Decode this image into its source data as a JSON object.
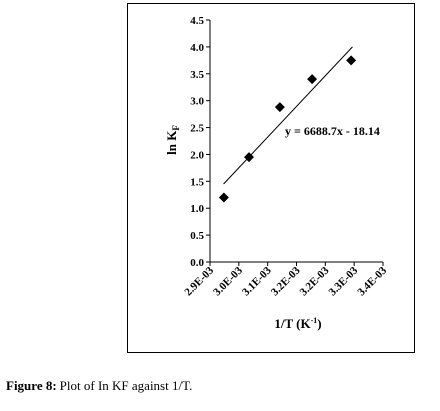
{
  "chart_data": {
    "type": "scatter",
    "x_label": [
      "1/T (K",
      "-1",
      ")"
    ],
    "y_label": [
      "ln K",
      "F"
    ],
    "x": [
      0.002941,
      0.003015,
      0.003106,
      0.003201,
      0.003316
    ],
    "values": [
      1.2,
      1.95,
      2.88,
      3.4,
      3.75
    ],
    "color": "#000000",
    "trendline": {
      "x": [
        0.00294,
        0.00332
      ],
      "y": [
        1.45,
        4.0
      ],
      "label": "y = 6688.7x - 18.14"
    },
    "xlim": [
      0.0029,
      0.00341
    ],
    "xticks": [
      {
        "value": 0.0029,
        "label": "2.9E-03"
      },
      {
        "value": 0.002985,
        "label": "3.0E-03"
      },
      {
        "value": 0.00307,
        "label": "3.1E-03"
      },
      {
        "value": 0.003155,
        "label": "3.2E-03"
      },
      {
        "value": 0.00324,
        "label": "3.2E-03"
      },
      {
        "value": 0.003325,
        "label": "3.3E-03"
      },
      {
        "value": 0.00341,
        "label": "3.4E-03"
      }
    ],
    "ylim": [
      0,
      4.5
    ],
    "yticks": [
      {
        "value": 0,
        "label": "0.0"
      },
      {
        "value": 0.5,
        "label": "0.5"
      },
      {
        "value": 1,
        "label": "1.0"
      },
      {
        "value": 1.5,
        "label": "1.5"
      },
      {
        "value": 2,
        "label": "2.0"
      },
      {
        "value": 2.5,
        "label": "2.5"
      },
      {
        "value": 3,
        "label": "3.0"
      },
      {
        "value": 3.5,
        "label": "3.5"
      },
      {
        "value": 4,
        "label": "4.0"
      },
      {
        "value": 4.5,
        "label": "4.5"
      }
    ]
  },
  "caption": {
    "label": "Figure 8:",
    "text": "Plot of In KF against 1/T."
  }
}
